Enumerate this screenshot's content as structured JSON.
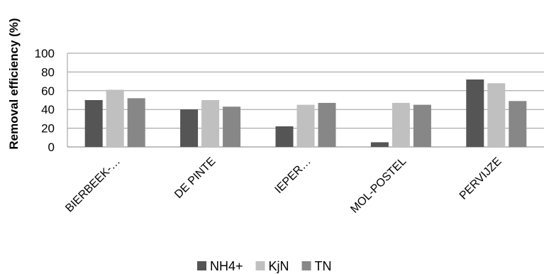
{
  "chart_data": {
    "type": "bar",
    "title": "",
    "xlabel": "",
    "ylabel": "Removal efficiency (%)",
    "ylim": [
      0,
      100
    ],
    "yticks": [
      0,
      20,
      40,
      60,
      80,
      100
    ],
    "grid": true,
    "legend_position": "bottom",
    "categories": [
      "BIERBEEK-…",
      "DE PINTE",
      "IEPER…",
      "MOL-POSTEL",
      "PERVIJZE"
    ],
    "series": [
      {
        "name": "NH4+",
        "color": "#555555",
        "values": [
          50,
          40,
          22,
          5,
          72
        ]
      },
      {
        "name": "KjN",
        "color": "#c0c0c0",
        "values": [
          61,
          50,
          45,
          47,
          68
        ]
      },
      {
        "name": "TN",
        "color": "#878787",
        "values": [
          52,
          43,
          47,
          45,
          49
        ]
      }
    ]
  }
}
